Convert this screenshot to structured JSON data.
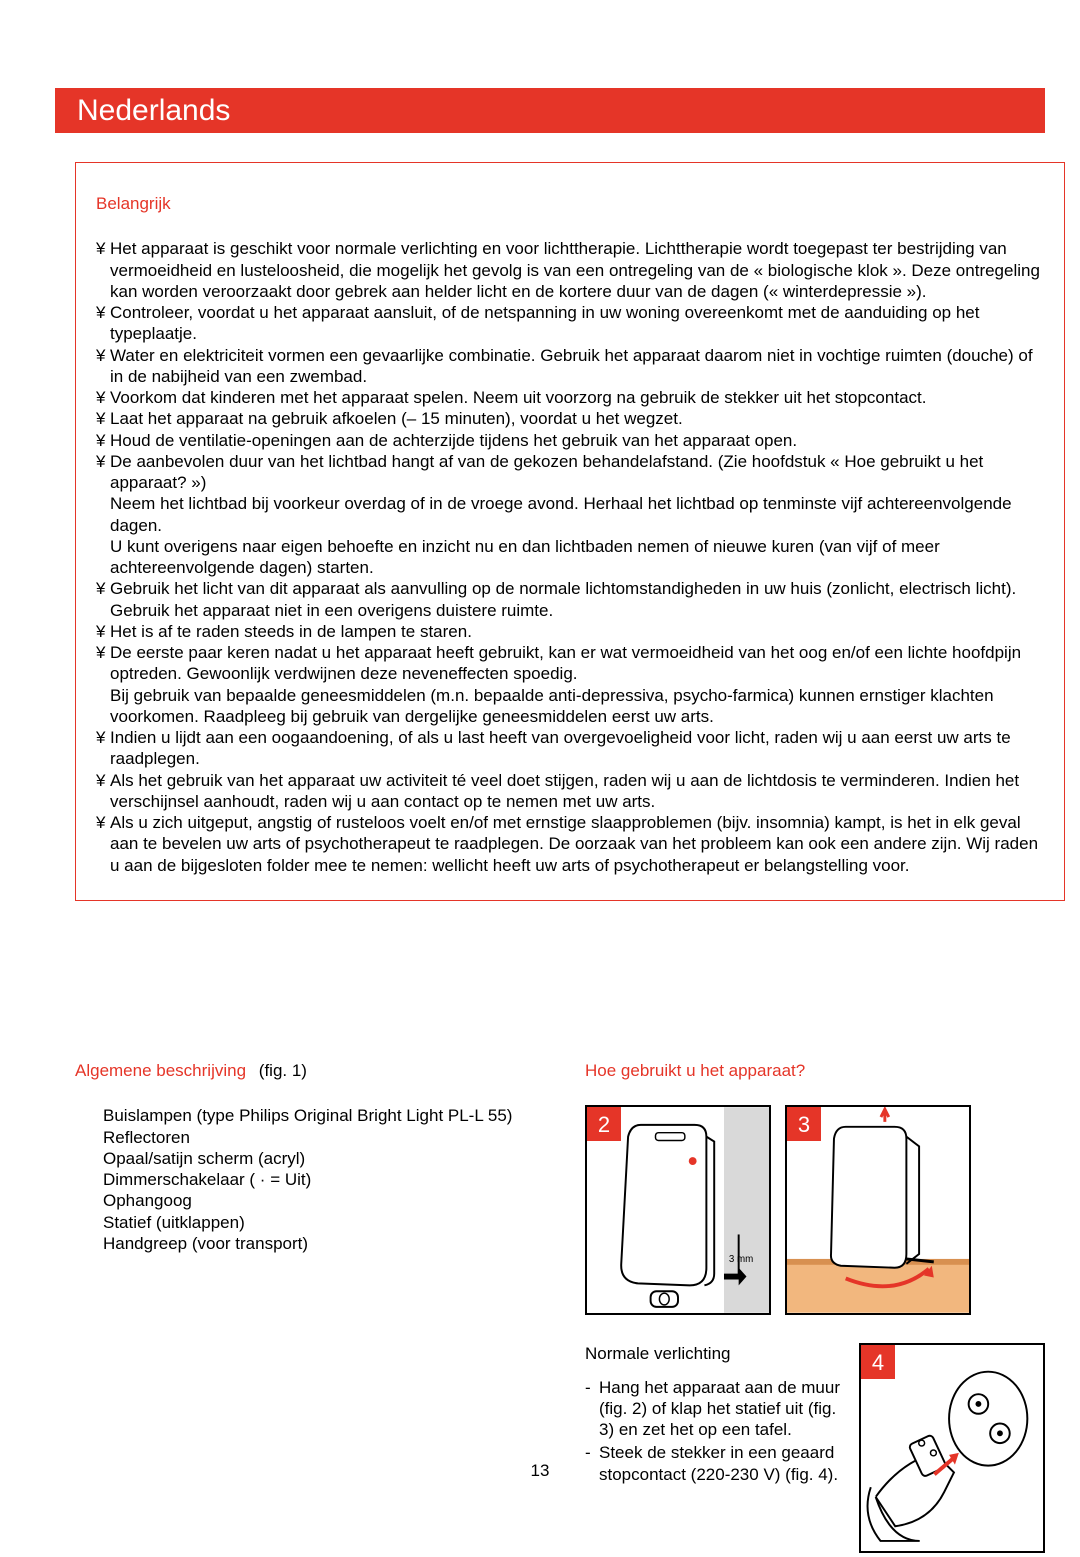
{
  "header": {
    "title": "Nederlands"
  },
  "important": {
    "heading": "Belangrijk",
    "items": [
      "Het apparaat is geschikt voor normale verlichting en voor lichttherapie. Lichttherapie wordt toegepast ter bestrijding van vermoeidheid en lusteloosheid, die mogelijk het gevolg is van een ontregeling van de « biologische klok ». Deze ontregeling kan worden veroorzaakt door gebrek aan helder licht en de kortere duur van de dagen (« winterdepressie »).",
      "Controleer, voordat u het apparaat aansluit, of de netspanning in uw woning overeenkomt met de aanduiding op het typeplaatje.",
      "Water en elektriciteit vormen een gevaarlijke combinatie. Gebruik het apparaat daarom niet in vochtige ruimten (douche) of in de nabijheid van een zwembad.",
      "Voorkom dat kinderen met het apparaat spelen. Neem uit voorzorg na gebruik de stekker uit het stopcontact.",
      "Laat het apparaat na gebruik afkoelen (– 15 minuten), voordat u het wegzet.",
      "Houd de ventilatie-openingen aan de achterzijde tijdens het gebruik van het apparaat open.",
      "De aanbevolen duur van het lichtbad hangt af van de gekozen behandelafstand. (Zie hoofdstuk « Hoe gebruikt u het apparaat? »)\nNeem het lichtbad bij voorkeur overdag of in de vroege avond. Herhaal het lichtbad op tenminste vijf achtereenvolgende dagen.\nU kunt overigens naar eigen behoefte en inzicht nu en dan lichtbaden nemen of nieuwe kuren (van vijf of meer achtereenvolgende dagen) starten.",
      "Gebruik het licht van dit apparaat als aanvulling op de normale lichtomstandigheden in uw huis (zonlicht, electrisch licht). Gebruik het apparaat niet in een overigens duistere ruimte.",
      "Het is af te raden steeds in de lampen te staren.",
      "De eerste paar keren nadat u het apparaat heeft gebruikt, kan er wat vermoeidheid van het oog en/of een lichte hoofdpijn optreden. Gewoonlijk verdwijnen deze neveneffecten spoedig.\nBij gebruik van bepaalde geneesmiddelen (m.n. bepaalde anti-depressiva, psycho-farmica) kunnen ernstiger klachten voorkomen. Raadpleeg bij gebruik van dergelijke geneesmiddelen eerst uw arts.",
      "Indien u lijdt aan een oogaandoening, of als u last heeft van overgevoeligheid voor licht, raden wij u aan eerst uw arts te raadplegen.",
      "Als het gebruik van het apparaat uw activiteit té veel doet stijgen, raden wij u aan de lichtdosis te verminderen. Indien het verschijnsel aanhoudt, raden wij u aan contact op te nemen met uw arts.",
      "Als u zich uitgeput, angstig of rusteloos voelt en/of met ernstige slaapproblemen (bijv. insomnia) kampt, is het in elk geval aan te bevelen uw arts of psychotherapeut te raadplegen. De oorzaak van het probleem kan ook een andere zijn. Wij raden u aan de bijgesloten folder mee te nemen: wellicht heeft uw arts of psychotherapeut er belangstelling voor."
    ]
  },
  "general": {
    "heading": "Algemene beschrijving",
    "figref": "(fig. 1)",
    "items": [
      "Buislampen (type Philips Original Bright Light PL-L 55)",
      "Reflectoren",
      "Opaal/satijn scherm (acryl)",
      "Dimmerschakelaar ( · = Uit)",
      "Ophangoog",
      "Statief (uitklappen)",
      "Handgreep (voor transport)"
    ]
  },
  "usage": {
    "heading": "Hoe gebruikt u het apparaat?",
    "fig2": "2",
    "fig3": "3",
    "fig4": "4",
    "fig2_label": "3 mm",
    "normal_heading": "Normale verlichting",
    "steps": [
      "Hang het apparaat aan de muur (fig. 2) of klap het statief uit (fig. 3) en zet het op een tafel.",
      "Steek de stekker in een geaard stopcontact (220-230 V) (fig. 4)."
    ]
  },
  "page_number": "13"
}
